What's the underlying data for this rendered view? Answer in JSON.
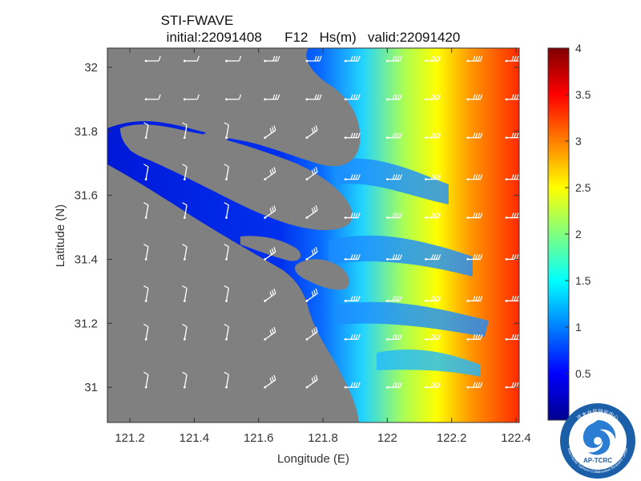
{
  "chart_data": {
    "type": "heatmap",
    "title_line1": "STI-FWAVE",
    "title_line2": "initial:22091408      F12   Hs(m)   valid:22091420",
    "xlabel": "Longitude (E)",
    "ylabel": "Latitude (N)",
    "xlim": [
      121.13,
      122.41
    ],
    "ylim": [
      30.89,
      32.06
    ],
    "xticks": [
      121.2,
      121.4,
      121.6,
      121.8,
      122,
      122.2,
      122.4
    ],
    "xtick_labels": [
      "121.2",
      "121.4",
      "121.6",
      "121.8",
      "122",
      "122.2",
      "122.4"
    ],
    "yticks": [
      31,
      31.2,
      31.4,
      31.6,
      31.8,
      32
    ],
    "ytick_labels": [
      "31",
      "31.2",
      "31.4",
      "31.6",
      "31.8",
      "32"
    ],
    "colorbar": {
      "range": [
        0,
        4
      ],
      "ticks": [
        0.5,
        1,
        1.5,
        2,
        2.5,
        3,
        3.5,
        4
      ],
      "tick_labels": [
        "0.5",
        "1",
        "1.5",
        "2",
        "2.5",
        "3",
        "3.5",
        "4"
      ],
      "colormap": "jet"
    },
    "land_color": "#808080",
    "wind_barb_color": "#ffffff",
    "wind_barb_grid": {
      "lon": [
        121.25,
        121.37,
        121.5,
        121.62,
        121.75,
        121.87,
        122.0,
        122.12,
        122.25,
        122.37
      ],
      "lat": [
        31.0,
        31.15,
        31.27,
        31.4,
        31.53,
        31.65,
        31.78,
        31.9,
        32.02
      ]
    },
    "hs_profile_east": [
      {
        "lon": 121.9,
        "hs": 0.6
      },
      {
        "lon": 122.0,
        "hs": 1.3
      },
      {
        "lon": 122.1,
        "hs": 2.0
      },
      {
        "lon": 122.2,
        "hs": 2.6
      },
      {
        "lon": 122.3,
        "hs": 3.0
      },
      {
        "lon": 122.4,
        "hs": 3.4
      }
    ]
  },
  "logo": {
    "text": "AP-TCRC",
    "ring_text": "Asia-Pacific Typhoon Collaborative Research Center",
    "top_text": "亚太台风研究中心"
  }
}
